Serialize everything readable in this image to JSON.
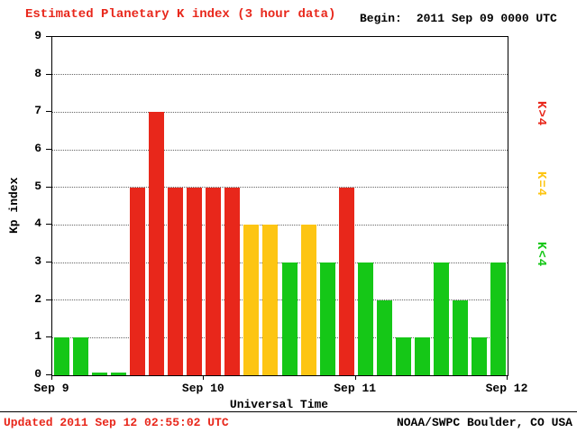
{
  "header": {
    "title": "Estimated Planetary K index (3 hour data)",
    "begin_label": "Begin:",
    "begin_value": "2011 Sep 09 0000 UTC"
  },
  "chart_data": {
    "type": "bar",
    "title": "Estimated Planetary K index (3 hour data)",
    "xlabel": "Universal Time",
    "ylabel": "Kp index",
    "ylim": [
      0,
      9
    ],
    "yticks": [
      0,
      1,
      2,
      3,
      4,
      5,
      6,
      7,
      8,
      9
    ],
    "x_day_labels": [
      "Sep 9",
      "Sep 10",
      "Sep 11",
      "Sep 12"
    ],
    "interval_hours": 3,
    "grid": "dotted-horizontal",
    "legend_position": "right-vertical",
    "values": [
      1,
      1,
      0,
      0,
      5,
      7,
      5,
      5,
      5,
      5,
      4,
      4,
      3,
      4,
      3,
      5,
      3,
      2,
      1,
      1,
      3,
      2,
      1,
      3
    ]
  },
  "legend": [
    {
      "label": "K>4",
      "color": "#e8271b"
    },
    {
      "label": "K=4",
      "color": "#fdc513"
    },
    {
      "label": "K<4",
      "color": "#15c717"
    }
  ],
  "footer": {
    "updated": "Updated 2011 Sep 12 02:55:02 UTC",
    "source": "NOAA/SWPC Boulder, CO USA"
  }
}
